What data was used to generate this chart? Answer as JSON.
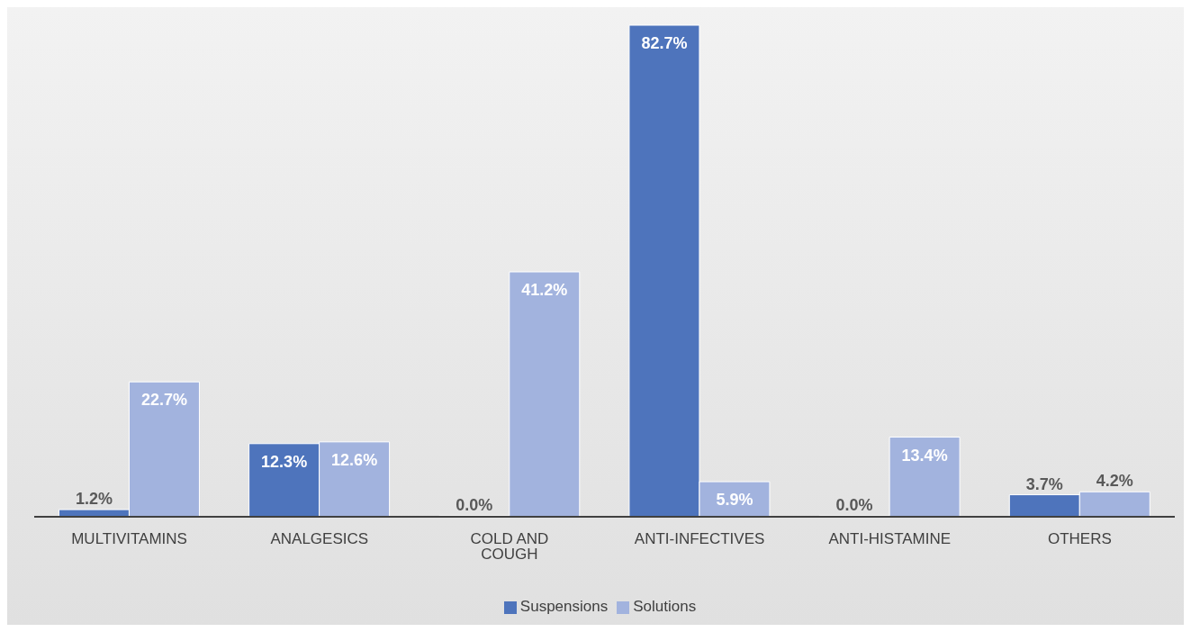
{
  "chart_data": {
    "type": "bar",
    "categories": [
      "MULTIVITAMINS",
      "ANALGESICS",
      "COLD AND COUGH",
      "ANTI-INFECTIVES",
      "ANTI-HISTAMINE",
      "OTHERS"
    ],
    "series": [
      {
        "name": "Suspensions",
        "color": "#4e74bc",
        "values": [
          1.2,
          12.3,
          0.0,
          82.7,
          0.0,
          3.7
        ],
        "value_labels": [
          "1.2%",
          "12.3%",
          "0.0%",
          "82.7%",
          "0.0%",
          "3.7%"
        ]
      },
      {
        "name": "Solutions",
        "color": "#a2b3de",
        "values": [
          22.7,
          12.6,
          41.2,
          5.9,
          13.4,
          4.2
        ],
        "value_labels": [
          "22.7%",
          "12.6%",
          "41.2%",
          "5.9%",
          "13.4%",
          "4.2%"
        ]
      }
    ],
    "legend": "bottom"
  }
}
